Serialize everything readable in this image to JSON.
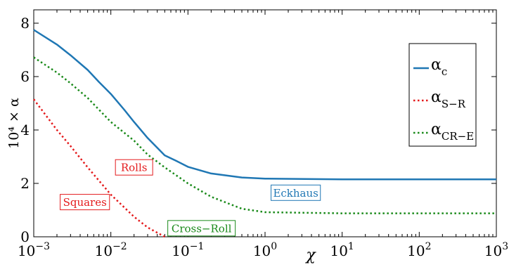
{
  "chart_data": {
    "type": "line",
    "xscale": "log",
    "xlim": [
      0.001,
      1000
    ],
    "ylim": [
      0,
      8.5
    ],
    "grid": false,
    "xlabel": "χ",
    "ylabel": "10⁴ × α",
    "x_ticks": [
      {
        "base": "10",
        "exp": "−3",
        "value": 0.001
      },
      {
        "base": "10",
        "exp": "−2",
        "value": 0.01
      },
      {
        "base": "10",
        "exp": "−1",
        "value": 0.1
      },
      {
        "base": "10",
        "exp": "0",
        "value": 1
      },
      {
        "base": "10",
        "exp": "1",
        "value": 10
      },
      {
        "base": "10",
        "exp": "2",
        "value": 100
      },
      {
        "base": "10",
        "exp": "3",
        "value": 1000
      }
    ],
    "y_ticks": [
      {
        "label": "0",
        "value": 0
      },
      {
        "label": "2",
        "value": 2
      },
      {
        "label": "4",
        "value": 4
      },
      {
        "label": "6",
        "value": 6
      },
      {
        "label": "8",
        "value": 8
      }
    ],
    "legend_position": "top-right",
    "series": [
      {
        "name": "α",
        "subscript": "c",
        "color": "#1f77b4",
        "style": "solid",
        "x": [
          0.001,
          0.002,
          0.003,
          0.005,
          0.007,
          0.01,
          0.015,
          0.02,
          0.03,
          0.05,
          0.07,
          0.1,
          0.2,
          0.5,
          1,
          10,
          100,
          1000
        ],
        "y": [
          7.75,
          7.2,
          6.8,
          6.25,
          5.8,
          5.35,
          4.75,
          4.3,
          3.7,
          3.05,
          2.85,
          2.62,
          2.37,
          2.22,
          2.18,
          2.15,
          2.15,
          2.15
        ]
      },
      {
        "name": "α",
        "subscript": "S−R",
        "color": "#e41a1c",
        "style": "dotted",
        "x": [
          0.001,
          0.002,
          0.003,
          0.005,
          0.01,
          0.02,
          0.03,
          0.05
        ],
        "y": [
          5.15,
          4.0,
          3.4,
          2.6,
          1.58,
          0.75,
          0.35,
          0.0
        ]
      },
      {
        "name": "α",
        "subscript": "CR−E",
        "color": "#1a8a1a",
        "style": "dotted",
        "x": [
          0.001,
          0.002,
          0.003,
          0.005,
          0.01,
          0.02,
          0.03,
          0.05,
          0.1,
          0.2,
          0.5,
          1,
          10,
          100,
          1000
        ],
        "y": [
          6.72,
          6.15,
          5.75,
          5.2,
          4.3,
          3.6,
          3.08,
          2.6,
          2.0,
          1.5,
          1.05,
          0.92,
          0.88,
          0.88,
          0.88
        ]
      }
    ],
    "annotations": [
      {
        "text": "Rolls",
        "x": 0.02,
        "y": 2.6,
        "color": "#e41a1c"
      },
      {
        "text": "Squares",
        "x": 0.0046,
        "y": 1.3,
        "color": "#e41a1c"
      },
      {
        "text": "Cross−Roll",
        "x": 0.15,
        "y": 0.32,
        "color": "#1a8a1a"
      },
      {
        "text": "Eckhaus",
        "x": 2.5,
        "y": 1.65,
        "color": "#1f77b4"
      }
    ]
  }
}
